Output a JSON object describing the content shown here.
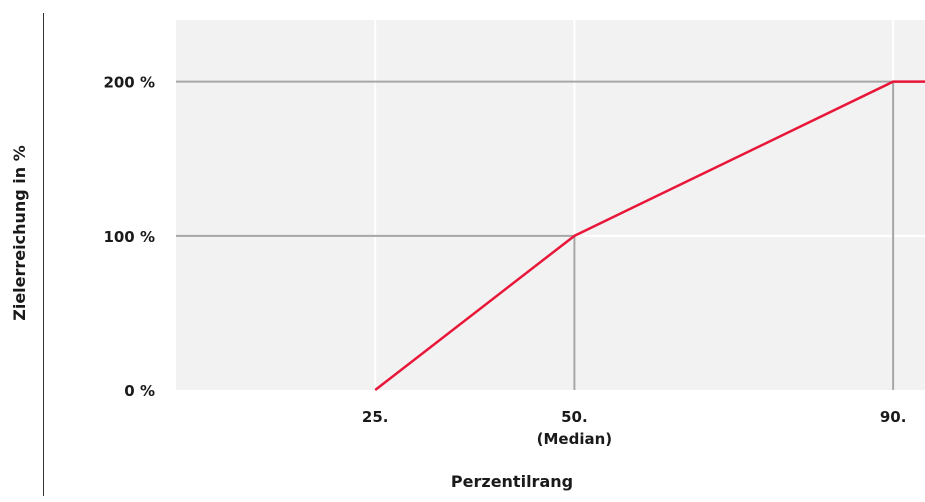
{
  "chart_data": {
    "type": "line",
    "title": "",
    "xlabel": "Perzentilrang",
    "ylabel": "Zielerreichung in %",
    "x_ticks": [
      {
        "value": 25,
        "label": "25."
      },
      {
        "value": 50,
        "label": "50.",
        "sublabel": "(Median)"
      },
      {
        "value": 90,
        "label": "90."
      }
    ],
    "y_ticks": [
      {
        "value": 0,
        "label": "0 %"
      },
      {
        "value": 100,
        "label": "100 %"
      },
      {
        "value": 200,
        "label": "200 %"
      }
    ],
    "xlim": [
      0,
      94
    ],
    "ylim": [
      0,
      240
    ],
    "series": [
      {
        "x": [
          25,
          50,
          90,
          94
        ],
        "y": [
          0,
          100,
          200,
          200
        ]
      }
    ],
    "reference_points": [
      {
        "x": 50,
        "y": 100
      },
      {
        "x": 90,
        "y": 200
      }
    ],
    "colors": {
      "line": "#e8173a",
      "plot_background": "#f2f2f2",
      "grid": "#ffffff",
      "reference": "#a6a6a6",
      "axis": "#333333"
    }
  }
}
